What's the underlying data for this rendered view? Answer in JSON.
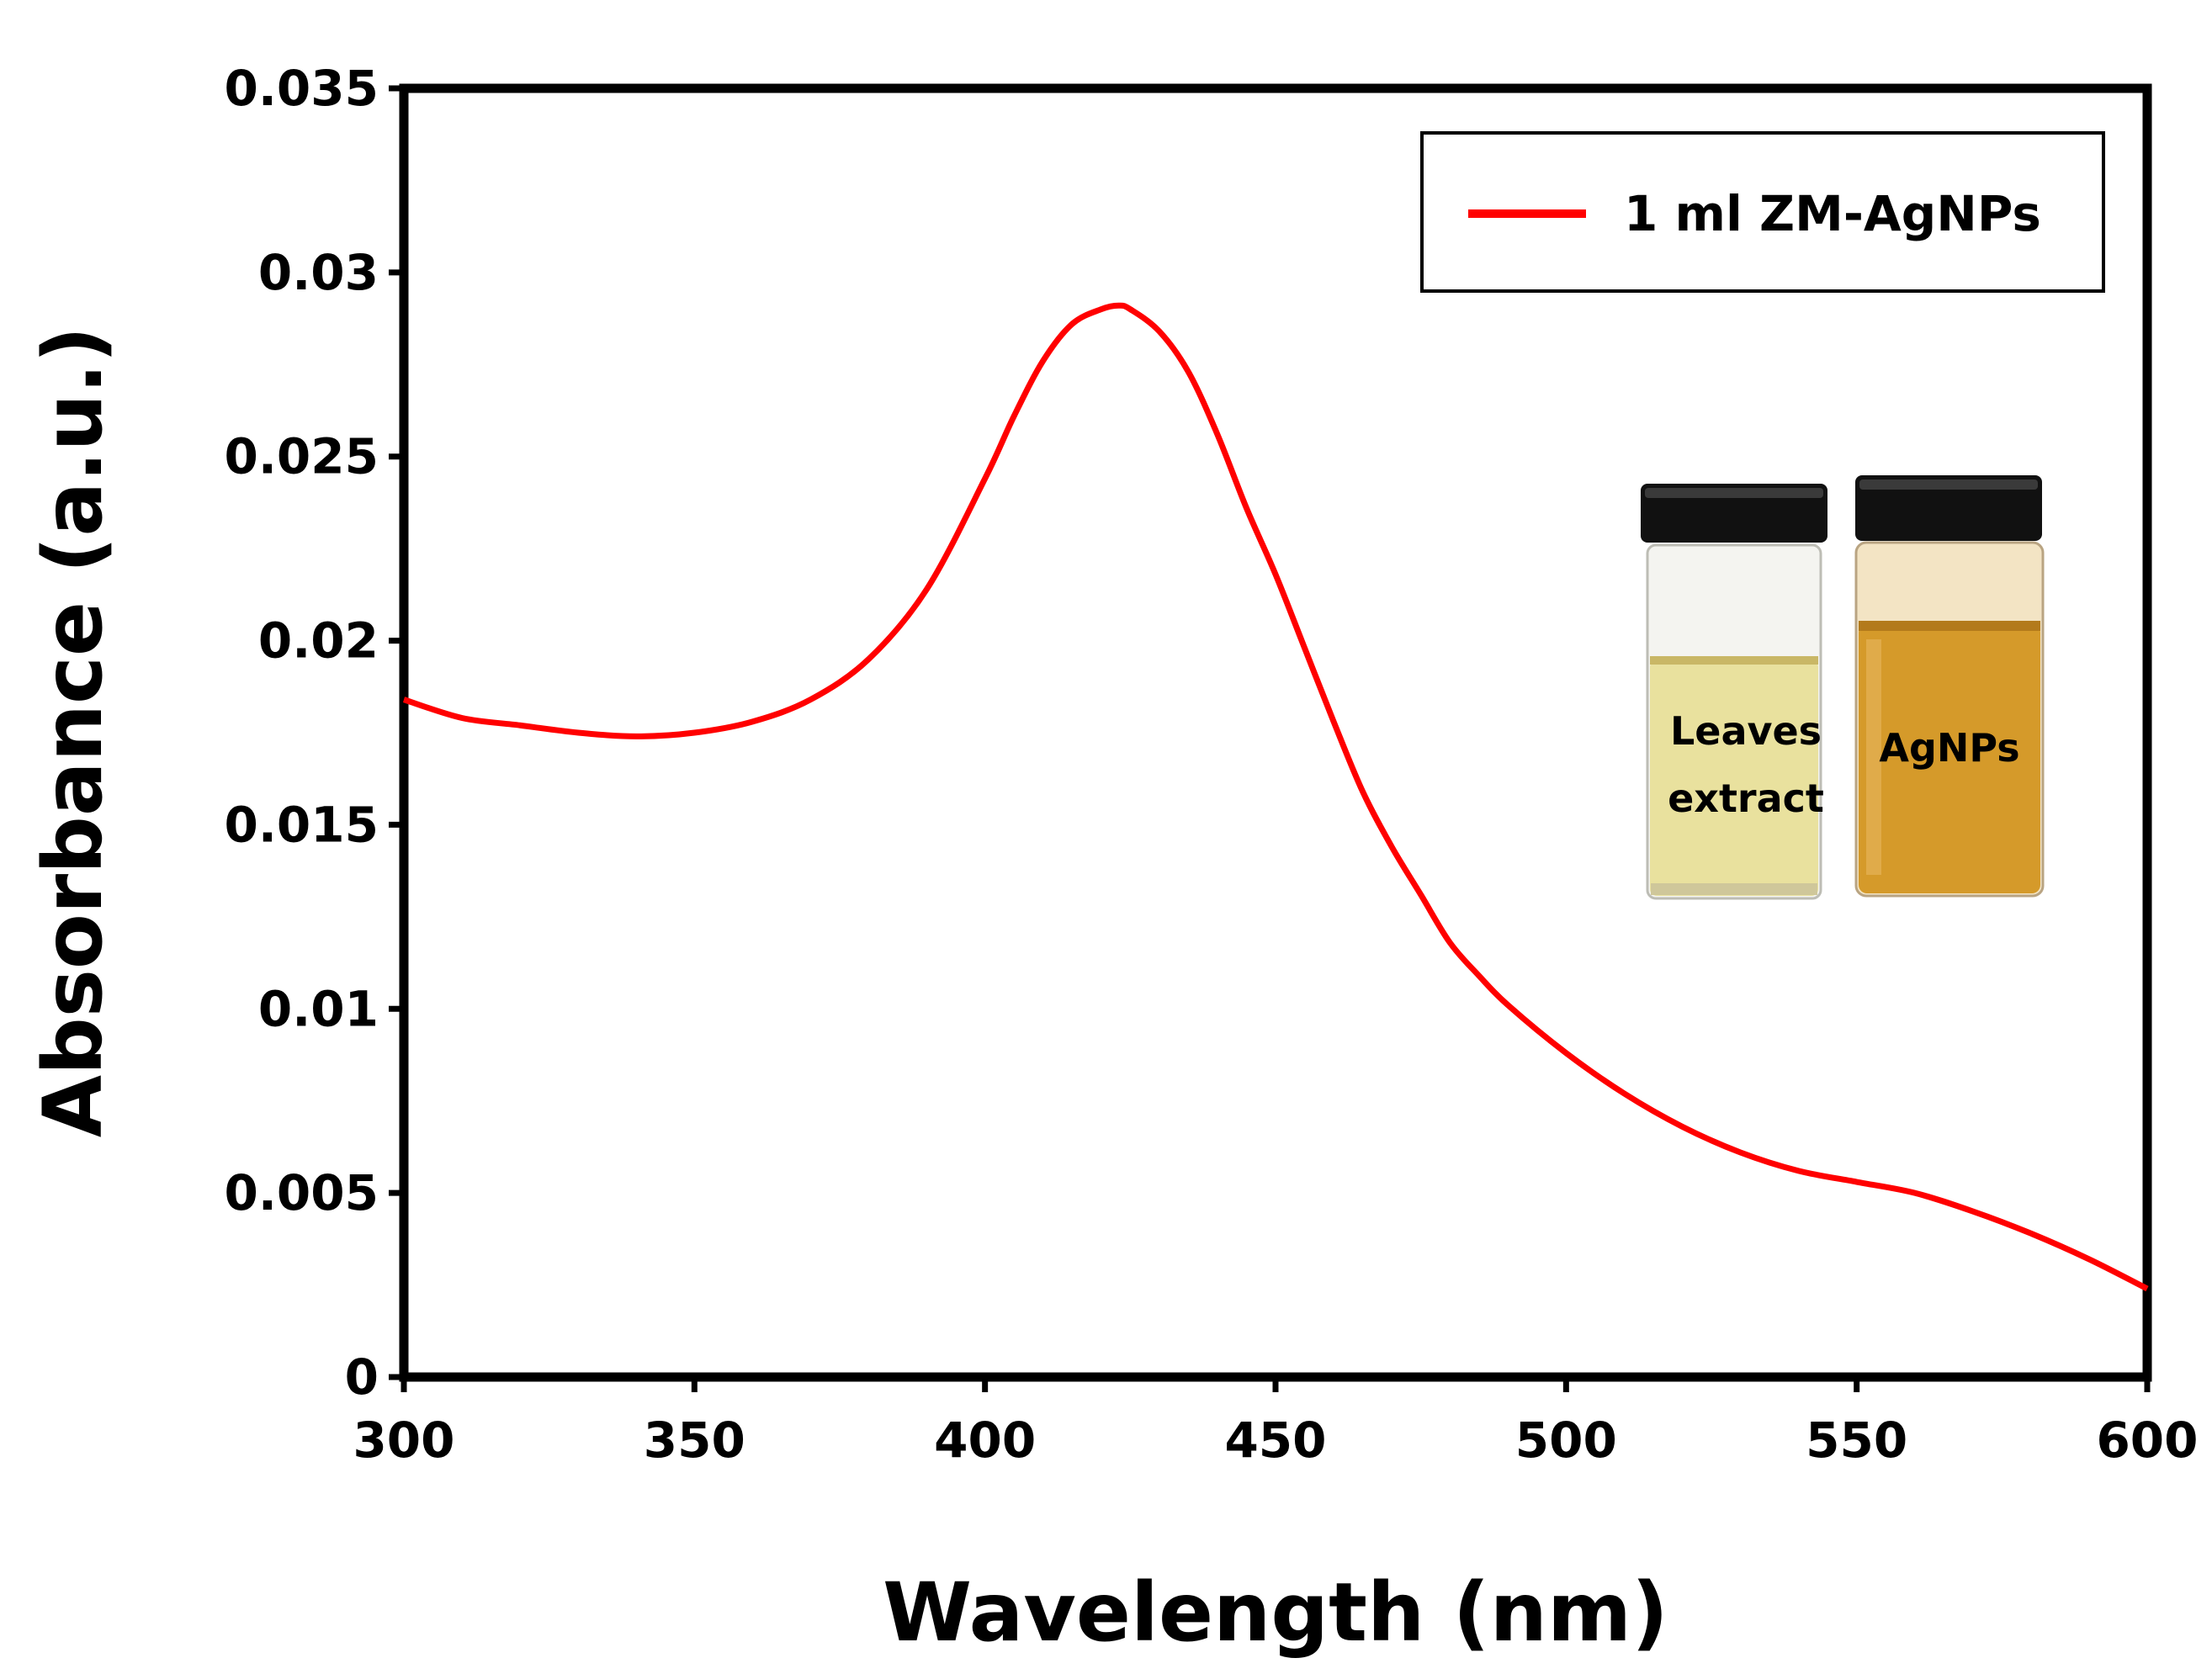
{
  "chart_data": {
    "type": "line",
    "title": "",
    "xlabel": "Wavelength (nm)",
    "ylabel": "Absorbance (a.u.)",
    "xlim": [
      300,
      600
    ],
    "ylim": [
      0,
      0.035
    ],
    "xticks": [
      "300",
      "350",
      "400",
      "450",
      "500",
      "550",
      "600"
    ],
    "yticks": [
      "0",
      "0.005",
      "0.01",
      "0.015",
      "0.02",
      "0.025",
      "0.03",
      "0.035"
    ],
    "grid": false,
    "legend_position": "top-right",
    "series": [
      {
        "name": "1 ml ZM-AgNPs",
        "color": "#ff0000",
        "x": [
          300,
          310,
          320,
          330,
          340,
          350,
          360,
          370,
          380,
          390,
          400,
          405,
          410,
          415,
          420,
          423,
          425,
          430,
          435,
          440,
          445,
          450,
          455,
          460,
          465,
          470,
          475,
          480,
          485,
          490,
          500,
          510,
          520,
          530,
          540,
          550,
          560,
          570,
          580,
          590,
          600
        ],
        "y": [
          0.0184,
          0.0179,
          0.0177,
          0.0175,
          0.0174,
          0.0175,
          0.0178,
          0.0184,
          0.0195,
          0.0214,
          0.0244,
          0.0261,
          0.0276,
          0.0286,
          0.029,
          0.0291,
          0.029,
          0.0284,
          0.0273,
          0.0256,
          0.0236,
          0.0218,
          0.0198,
          0.0178,
          0.0159,
          0.0144,
          0.0131,
          0.0118,
          0.0109,
          0.0101,
          0.0088,
          0.0077,
          0.0068,
          0.0061,
          0.0056,
          0.0053,
          0.005,
          0.0045,
          0.0039,
          0.0032,
          0.0024
        ]
      }
    ],
    "inset": {
      "vials": [
        {
          "label_line1": "Leaves",
          "label_line2": "extract",
          "liquid_color": "#e9e19e"
        },
        {
          "label_line1": "AgNPs",
          "label_line2": "",
          "liquid_color": "#d59a2a"
        }
      ]
    }
  }
}
